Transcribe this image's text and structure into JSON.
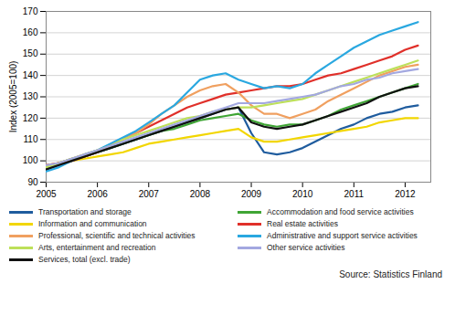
{
  "chart_data": {
    "type": "line",
    "y_label": "Index (2005=100)",
    "source": "Source: Statistics Finland",
    "x": [
      2005,
      2005.25,
      2005.5,
      2005.75,
      2006,
      2006.25,
      2006.5,
      2006.75,
      2007,
      2007.25,
      2007.5,
      2007.75,
      2008,
      2008.25,
      2008.5,
      2008.75,
      2009,
      2009.25,
      2009.5,
      2009.75,
      2010,
      2010.25,
      2010.5,
      2010.75,
      2011,
      2011.25,
      2011.5,
      2011.75,
      2012,
      2012.25
    ],
    "xlim": [
      2005,
      2012.5
    ],
    "xticks": [
      2005,
      2006,
      2007,
      2008,
      2009,
      2010,
      2011,
      2012
    ],
    "ylim": [
      90,
      170
    ],
    "yticks": [
      90,
      100,
      110,
      120,
      130,
      140,
      150,
      160,
      170
    ],
    "grid": true,
    "legend": "bottom",
    "series": [
      {
        "name": "Transportation and storage",
        "color": "#1f5c9e",
        "values": [
          96,
          98,
          100,
          102,
          104,
          106,
          108,
          110,
          112,
          114,
          116,
          118,
          120,
          122,
          124,
          125,
          113,
          104,
          103,
          104,
          106,
          109,
          112,
          115,
          117,
          120,
          122,
          123,
          125,
          126
        ]
      },
      {
        "name": "Accommodation and food service activities",
        "color": "#3fa535",
        "values": [
          97,
          99,
          101,
          102,
          104,
          106,
          108,
          110,
          112,
          114,
          115,
          117,
          119,
          120,
          121,
          122,
          119,
          117,
          116,
          117,
          117,
          119,
          121,
          124,
          126,
          128,
          130,
          132,
          134,
          136
        ]
      },
      {
        "name": "Information and communication",
        "color": "#f2d600",
        "values": [
          98,
          99,
          100,
          101,
          102,
          103,
          104,
          106,
          108,
          109,
          110,
          111,
          112,
          113,
          114,
          115,
          111,
          109,
          109,
          110,
          111,
          112,
          113,
          114,
          115,
          116,
          118,
          119,
          120,
          120
        ]
      },
      {
        "name": "Real estate activities",
        "color": "#e0302a",
        "values": [
          98,
          99,
          100,
          102,
          104,
          107,
          110,
          113,
          116,
          119,
          122,
          125,
          127,
          129,
          131,
          132,
          133,
          134,
          135,
          135,
          136,
          138,
          140,
          141,
          143,
          145,
          147,
          149,
          152,
          154
        ]
      },
      {
        "name": "Professional, scientific and technical activities",
        "color": "#f0a060",
        "values": [
          97,
          99,
          101,
          103,
          105,
          107,
          110,
          113,
          117,
          122,
          126,
          130,
          133,
          135,
          136,
          132,
          126,
          122,
          122,
          120,
          122,
          124,
          128,
          131,
          134,
          137,
          140,
          142,
          144,
          145
        ]
      },
      {
        "name": "Administrative and support service activities",
        "color": "#2aa8e0",
        "values": [
          95,
          97,
          100,
          103,
          105,
          108,
          111,
          114,
          118,
          122,
          126,
          132,
          138,
          140,
          141,
          138,
          136,
          134,
          135,
          134,
          136,
          141,
          145,
          149,
          153,
          156,
          159,
          161,
          163,
          165
        ]
      },
      {
        "name": "Arts, entertainment and recreation",
        "color": "#bde05a",
        "values": [
          97,
          99,
          101,
          103,
          105,
          107,
          110,
          112,
          114,
          116,
          118,
          120,
          121,
          123,
          124,
          125,
          125,
          126,
          127,
          128,
          129,
          131,
          133,
          135,
          137,
          139,
          141,
          143,
          145,
          147
        ]
      },
      {
        "name": "Other service activities",
        "color": "#a3a8e0",
        "values": [
          98,
          99,
          101,
          103,
          105,
          107,
          109,
          111,
          113,
          115,
          117,
          119,
          121,
          123,
          125,
          127,
          127,
          127,
          128,
          129,
          130,
          131,
          133,
          135,
          136,
          138,
          139,
          141,
          142,
          143
        ]
      },
      {
        "name": "Services, total (excl. trade)",
        "color": "#111111",
        "values": [
          96,
          98,
          100,
          102,
          104,
          106,
          108,
          110,
          112,
          114,
          116,
          118,
          120,
          122,
          124,
          125,
          118,
          116,
          115,
          116,
          117,
          119,
          121,
          123,
          125,
          127,
          130,
          132,
          134,
          135
        ]
      }
    ]
  }
}
